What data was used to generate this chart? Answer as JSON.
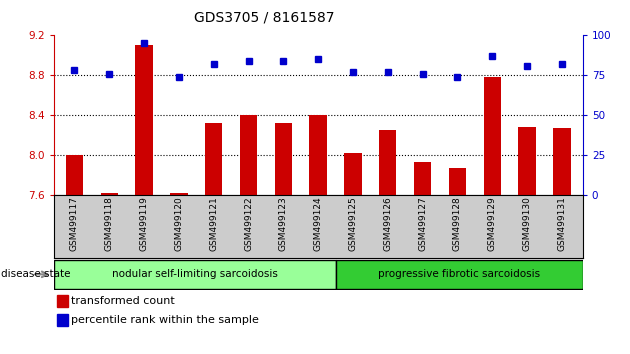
{
  "title": "GDS3705 / 8161587",
  "samples": [
    "GSM499117",
    "GSM499118",
    "GSM499119",
    "GSM499120",
    "GSM499121",
    "GSM499122",
    "GSM499123",
    "GSM499124",
    "GSM499125",
    "GSM499126",
    "GSM499127",
    "GSM499128",
    "GSM499129",
    "GSM499130",
    "GSM499131"
  ],
  "bar_values": [
    8.0,
    7.62,
    9.1,
    7.62,
    8.32,
    8.4,
    8.32,
    8.4,
    8.02,
    8.25,
    7.93,
    7.87,
    8.78,
    8.28,
    8.27
  ],
  "dot_values": [
    78,
    76,
    95,
    74,
    82,
    84,
    84,
    85,
    77,
    77,
    76,
    74,
    87,
    81,
    82
  ],
  "ylim_left": [
    7.6,
    9.2
  ],
  "ylim_right": [
    0,
    100
  ],
  "yticks_left": [
    7.6,
    8.0,
    8.4,
    8.8,
    9.2
  ],
  "yticks_right": [
    0,
    25,
    50,
    75,
    100
  ],
  "hlines": [
    8.0,
    8.4,
    8.8
  ],
  "group1_label": "nodular self-limiting sarcoidosis",
  "group2_label": "progressive fibrotic sarcoidosis",
  "group1_count": 8,
  "group2_count": 7,
  "disease_state_label": "disease state",
  "legend_bar_label": "transformed count",
  "legend_dot_label": "percentile rank within the sample",
  "bar_color": "#cc0000",
  "dot_color": "#0000cc",
  "group1_color": "#99ff99",
  "group2_color": "#33cc33",
  "tick_label_bg": "#cccccc",
  "bar_width": 0.5,
  "background_color": "#ffffff",
  "tick_label_color_left": "#cc0000",
  "tick_label_color_right": "#0000cc"
}
